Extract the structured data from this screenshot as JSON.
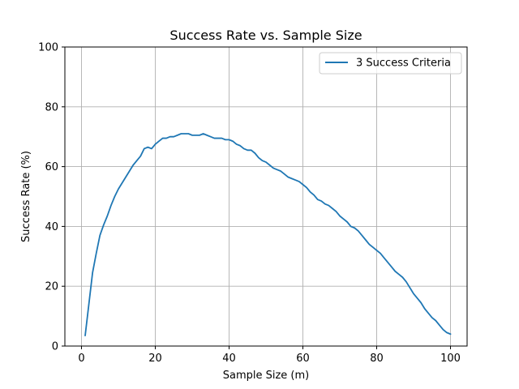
{
  "chart_data": {
    "type": "line",
    "title": "Success Rate vs. Sample Size",
    "xlabel": "Sample Size (m)",
    "ylabel": "Success Rate (%)",
    "xlim": [
      -4.5,
      104.5
    ],
    "ylim": [
      0,
      100
    ],
    "xticks": [
      0,
      20,
      40,
      60,
      80,
      100
    ],
    "yticks": [
      0,
      20,
      40,
      60,
      80,
      100
    ],
    "grid": true,
    "legend_position": "upper right",
    "series": [
      {
        "name": "3 Success Criteria",
        "color": "#1f77b4",
        "x": [
          1,
          2,
          3,
          4,
          5,
          6,
          7,
          8,
          9,
          10,
          11,
          12,
          13,
          14,
          15,
          16,
          17,
          18,
          19,
          20,
          21,
          22,
          23,
          24,
          25,
          26,
          27,
          28,
          29,
          30,
          31,
          32,
          33,
          34,
          35,
          36,
          37,
          38,
          39,
          40,
          41,
          42,
          43,
          44,
          45,
          46,
          47,
          48,
          49,
          50,
          51,
          52,
          53,
          54,
          55,
          56,
          57,
          58,
          59,
          60,
          61,
          62,
          63,
          64,
          65,
          66,
          67,
          68,
          69,
          70,
          71,
          72,
          73,
          74,
          75,
          76,
          77,
          78,
          79,
          80,
          81,
          82,
          83,
          84,
          85,
          86,
          87,
          88,
          89,
          90,
          91,
          92,
          93,
          94,
          95,
          96,
          97,
          98,
          99,
          100
        ],
        "y": [
          3.5,
          14,
          24.5,
          31,
          37,
          40.5,
          43.5,
          47,
          50,
          52.5,
          54.5,
          56.5,
          58.5,
          60.5,
          62,
          63.5,
          66,
          66.5,
          66,
          67.5,
          68.5,
          69.5,
          69.5,
          70,
          70,
          70.5,
          71,
          71,
          71,
          70.5,
          70.5,
          70.5,
          71,
          70.5,
          70,
          69.5,
          69.5,
          69.5,
          69,
          69,
          68.5,
          67.5,
          67,
          66,
          65.5,
          65.5,
          64.5,
          63,
          62,
          61.5,
          60.5,
          59.5,
          59,
          58.5,
          57.5,
          56.5,
          56,
          55.5,
          55,
          54,
          53,
          51.5,
          50.5,
          49,
          48.5,
          47.5,
          47,
          46,
          45,
          43.5,
          42.5,
          41.5,
          40,
          39.5,
          38.5,
          37,
          35.5,
          34,
          33,
          32,
          31,
          29.5,
          28,
          26.5,
          25,
          24,
          23,
          21.5,
          19.5,
          17.5,
          16,
          14.5,
          12.5,
          11,
          9.5,
          8.5,
          7,
          5.5,
          4.5,
          4
        ]
      }
    ]
  }
}
